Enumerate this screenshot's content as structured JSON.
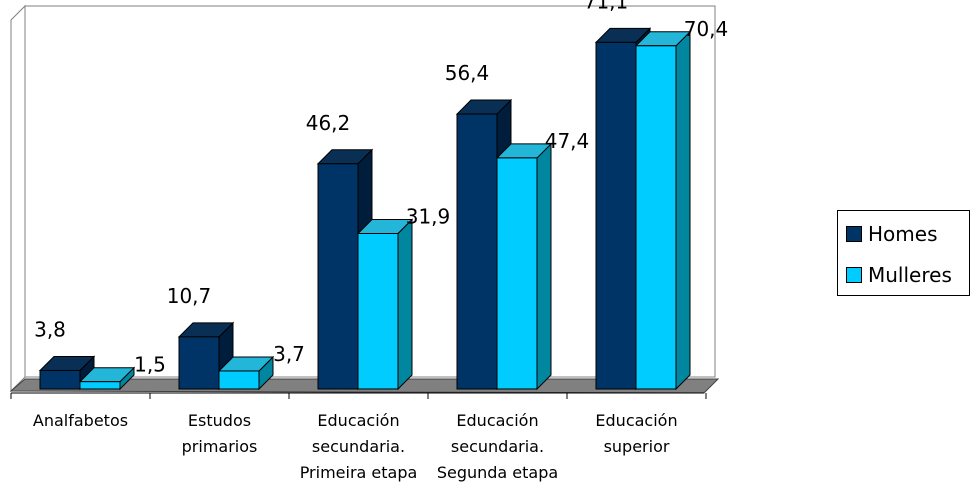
{
  "chart_data": {
    "type": "bar",
    "categories": [
      [
        "Analfabetos"
      ],
      [
        "Estudos",
        "primarios"
      ],
      [
        "Educación",
        "secundaria.",
        "Primeira etapa"
      ],
      [
        "Educación",
        "secundaria.",
        "Segunda etapa"
      ],
      [
        "Educación",
        "superior"
      ]
    ],
    "series": [
      {
        "name": "Homes",
        "values": [
          3.8,
          10.7,
          46.2,
          56.4,
          71.1
        ],
        "labels": [
          "3,8",
          "10,7",
          "46,2",
          "56,4",
          "71,1"
        ]
      },
      {
        "name": "Mulleres",
        "values": [
          1.5,
          3.7,
          31.9,
          47.4,
          70.4
        ],
        "labels": [
          "1,5",
          "3,7",
          "31,9",
          "47,4",
          "70,4"
        ]
      }
    ],
    "ylim": [
      0,
      72
    ],
    "grid": false,
    "legend_position": "right",
    "colors": {
      "homes_front": "#003366",
      "homes_top": "#0a2f55",
      "homes_side": "#001d3b",
      "mulleres_front": "#00ccff",
      "mulleres_top": "#24b6d8",
      "mulleres_side": "#00869e",
      "floor": "#808080"
    }
  },
  "legend": {
    "items": [
      {
        "label": "Homes",
        "color": "#003366"
      },
      {
        "label": "Mulleres",
        "color": "#00ccff"
      }
    ]
  }
}
